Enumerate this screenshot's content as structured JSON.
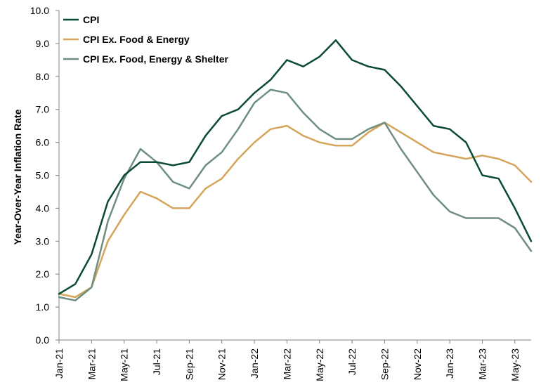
{
  "chart_data": {
    "type": "line",
    "title": "",
    "xlabel": "",
    "ylabel": "Year-Over-Year Inflation Rate",
    "ylim": [
      0,
      10
    ],
    "yticks": [
      "0.0",
      "1.0",
      "2.0",
      "3.0",
      "4.0",
      "5.0",
      "6.0",
      "7.0",
      "8.0",
      "9.0",
      "10.0"
    ],
    "grid": false,
    "legend_position": "top-left",
    "x": [
      "Jan-21",
      "Feb-21",
      "Mar-21",
      "Apr-21",
      "May-21",
      "Jun-21",
      "Jul-21",
      "Aug-21",
      "Sep-21",
      "Oct-21",
      "Nov-21",
      "Dec-21",
      "Jan-22",
      "Feb-22",
      "Mar-22",
      "Apr-22",
      "May-22",
      "Jun-22",
      "Jul-22",
      "Aug-22",
      "Sep-22",
      "Oct-22",
      "Nov-22",
      "Dec-22",
      "Jan-23",
      "Feb-23",
      "Mar-23",
      "Apr-23",
      "May-23",
      "Jun-23"
    ],
    "xtick_labels": [
      "Jan-21",
      "Mar-21",
      "May-21",
      "Jul-21",
      "Sep-21",
      "Nov-21",
      "Jan-22",
      "Mar-22",
      "May-22",
      "Jul-22",
      "Sep-22",
      "Nov-22",
      "Jan-23",
      "Mar-23",
      "May-23"
    ],
    "series": [
      {
        "name": "CPI",
        "color": "#0b4a33",
        "values": [
          1.4,
          1.7,
          2.6,
          4.2,
          5.0,
          5.4,
          5.4,
          5.3,
          5.4,
          6.2,
          6.8,
          7.0,
          7.5,
          7.9,
          8.5,
          8.3,
          8.6,
          9.1,
          8.5,
          8.3,
          8.2,
          7.7,
          7.1,
          6.5,
          6.4,
          6.0,
          5.0,
          4.9,
          4.0,
          3.0
        ]
      },
      {
        "name": "CPI Ex. Food & Energy",
        "color": "#d4a55a",
        "values": [
          1.4,
          1.3,
          1.6,
          3.0,
          3.8,
          4.5,
          4.3,
          4.0,
          4.0,
          4.6,
          4.9,
          5.5,
          6.0,
          6.4,
          6.5,
          6.2,
          6.0,
          5.9,
          5.9,
          6.3,
          6.6,
          6.3,
          6.0,
          5.7,
          5.6,
          5.5,
          5.6,
          5.5,
          5.3,
          4.8
        ]
      },
      {
        "name": "CPI Ex. Food, Energy & Shelter",
        "color": "#6e8f7f",
        "values": [
          1.3,
          1.2,
          1.6,
          3.6,
          4.9,
          5.8,
          5.4,
          4.8,
          4.6,
          5.3,
          5.7,
          6.4,
          7.2,
          7.6,
          7.5,
          6.9,
          6.4,
          6.1,
          6.1,
          6.4,
          6.6,
          5.8,
          5.1,
          4.4,
          3.9,
          3.7,
          3.7,
          3.7,
          3.4,
          2.7
        ]
      }
    ]
  }
}
